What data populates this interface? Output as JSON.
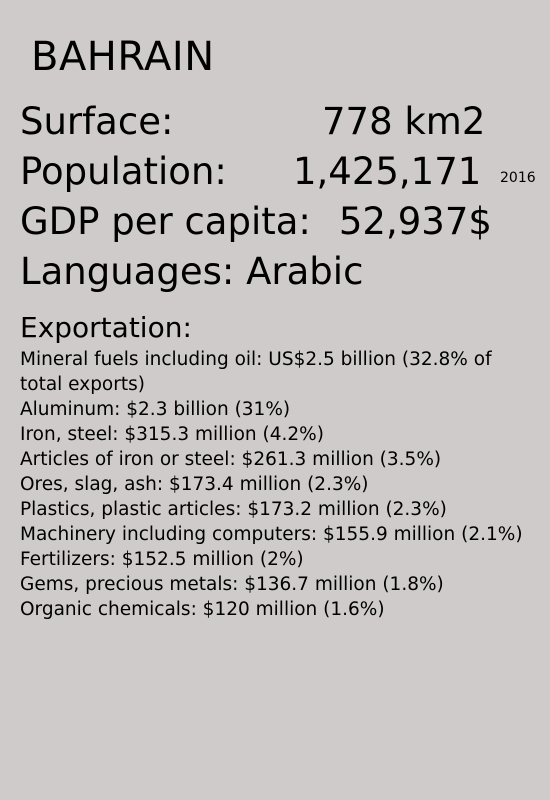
{
  "country": "BAHRAIN",
  "stats": {
    "surface_label": "Surface:",
    "surface_value": "778 km2",
    "population_label": "Population:",
    "population_value": "1,425,171",
    "population_year": "2016",
    "gdp_label": "GDP per capita:",
    "gdp_value": "52,937$",
    "languages_label": "Languages:",
    "languages_value": "Arabic"
  },
  "exportation": {
    "title": "Exportation:",
    "items": [
      "Mineral fuels including oil: US$2.5 billion (32.8% of total exports)",
      "Aluminum: $2.3 billion (31%)",
      "Iron, steel: $315.3 million (4.2%)",
      "Articles of iron or steel: $261.3 million (3.5%)",
      "Ores, slag, ash: $173.4 million (2.3%)",
      "Plastics, plastic articles: $173.2 million (2.3%)",
      "Machinery including computers: $155.9 million (2.1%)",
      "Fertilizers: $152.5 million (2%)",
      "Gems, precious metals: $136.7 million (1.8%)",
      "Organic chemicals: $120 million (1.6%)"
    ]
  }
}
